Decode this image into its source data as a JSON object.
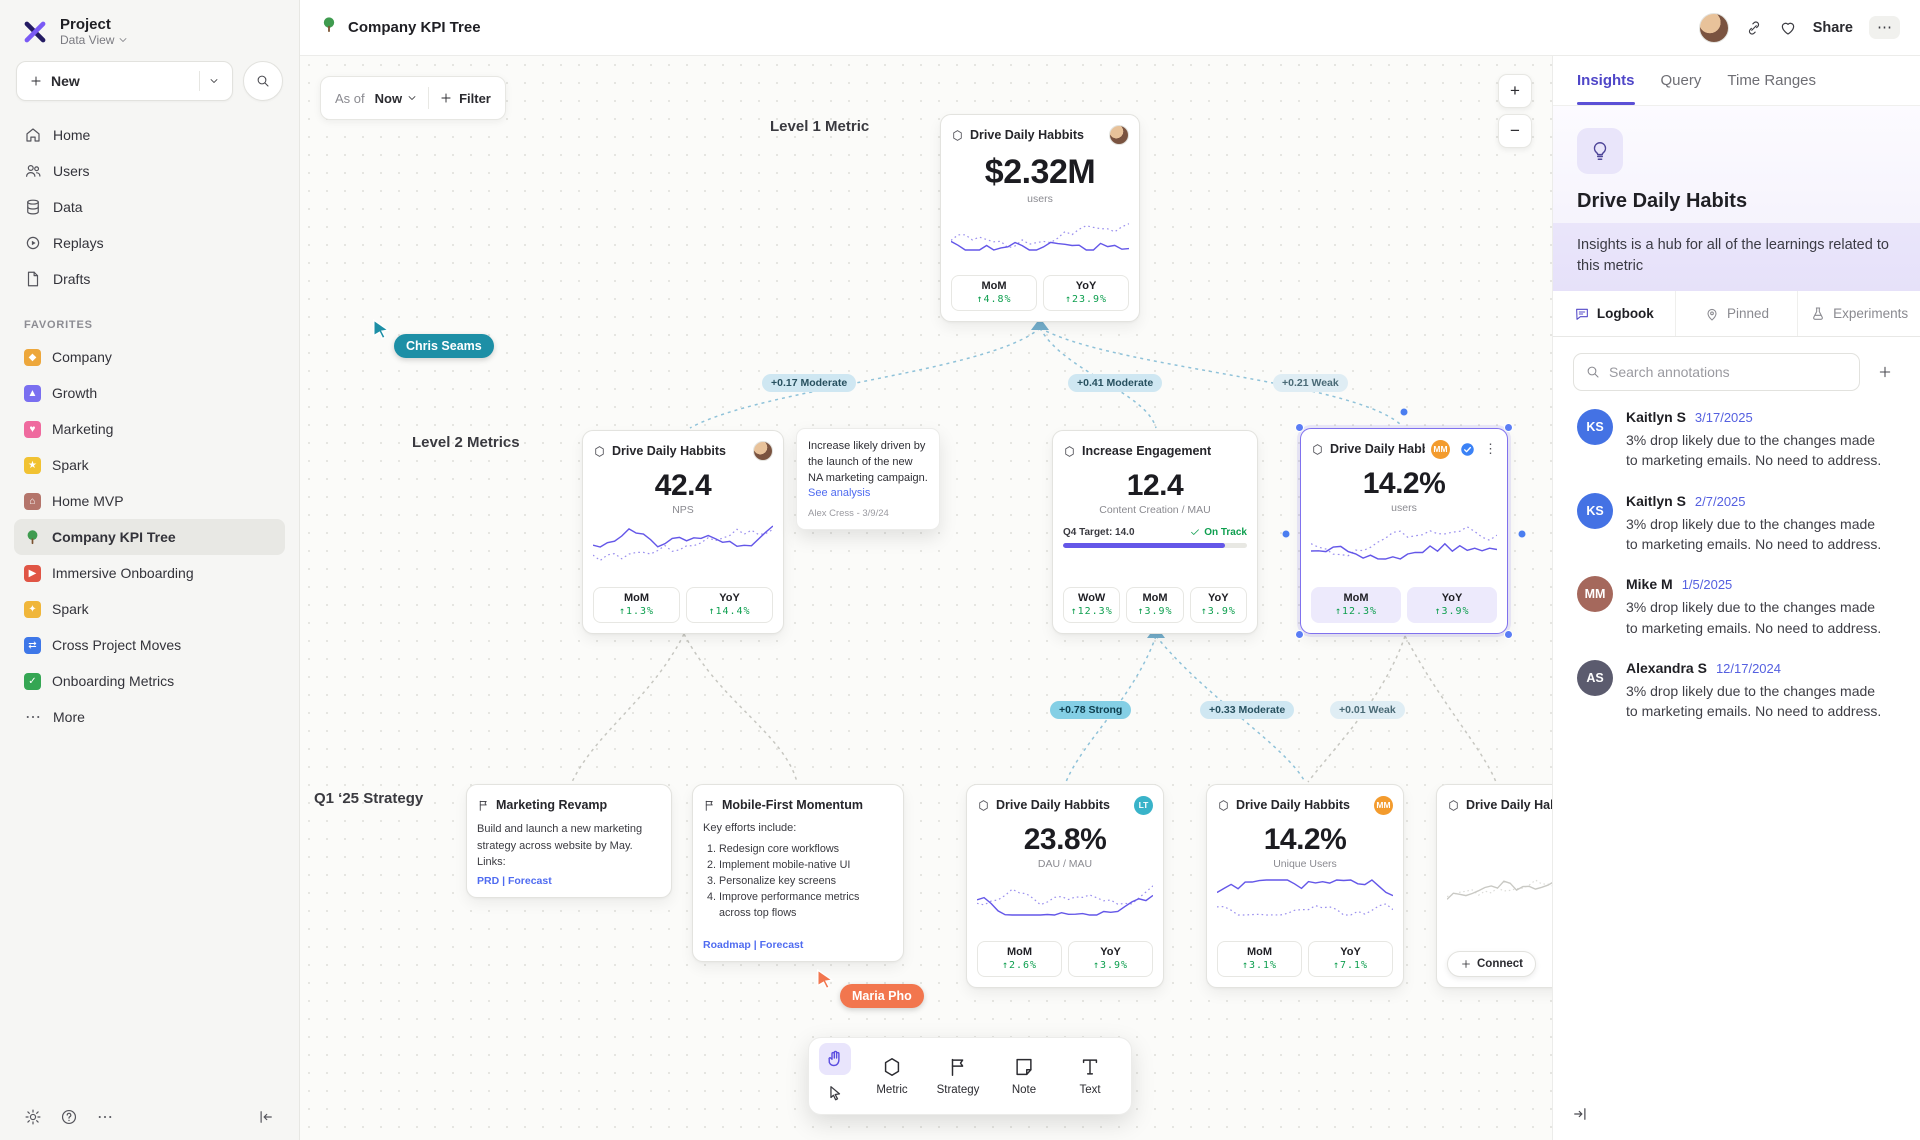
{
  "colors": {
    "accent_purple": "#6457e8",
    "positive_green": "#0e9f4f",
    "cursor_teal": "#1d8fa6",
    "cursor_orange": "#f2764e",
    "edge_blue": "#8fc2d9",
    "date_blue": "#5560e0",
    "badge_orange": "#f39b2d",
    "badge_teal": "#39b3c9",
    "selection_purple": "#8071ee"
  },
  "sidebar": {
    "project_title": "Project",
    "project_subtitle": "Data View",
    "new_button_label": "New",
    "nav": [
      {
        "label": "Home"
      },
      {
        "label": "Users"
      },
      {
        "label": "Data"
      },
      {
        "label": "Replays"
      },
      {
        "label": "Drafts"
      }
    ],
    "favorites_title": "FAVORITES",
    "favorites": [
      {
        "label": "Company"
      },
      {
        "label": "Growth"
      },
      {
        "label": "Marketing"
      },
      {
        "label": "Spark"
      },
      {
        "label": "Home MVP"
      },
      {
        "label": "Company KPI Tree"
      },
      {
        "label": "Immersive Onboarding"
      },
      {
        "label": "Spark"
      },
      {
        "label": "Cross Project Moves"
      },
      {
        "label": "Onboarding Metrics"
      }
    ],
    "more_label": "More"
  },
  "topbar": {
    "board_title": "Company KPI Tree",
    "share_label": "Share"
  },
  "canvas": {
    "as_of_label": "As of",
    "as_of_value": "Now",
    "filter_label": "Filter",
    "zoom_in": "+",
    "zoom_out": "−",
    "level1_label": "Level 1 Metric",
    "level2_label": "Level 2 Metrics",
    "strategy_label": "Q1 ‘25 Strategy",
    "cursors": [
      {
        "name": "Chris Seams"
      },
      {
        "name": "Maria Pho"
      }
    ],
    "edges": [
      {
        "label": "+0.17 Moderate",
        "strength": "moderate"
      },
      {
        "label": "+0.41 Moderate",
        "strength": "moderate"
      },
      {
        "label": "+0.21 Weak",
        "strength": "weak"
      },
      {
        "label": "+0.78 Strong",
        "strength": "strong"
      },
      {
        "label": "+0.33 Moderate",
        "strength": "moderate"
      },
      {
        "label": "+0.01 Weak",
        "strength": "weak"
      }
    ],
    "cards": {
      "root": {
        "title": "Drive Daily Habbits",
        "value": "$2.32M",
        "unit": "users",
        "chips": [
          {
            "label": "MoM",
            "value": "↑4.8%"
          },
          {
            "label": "YoY",
            "value": "↑23.9%"
          }
        ]
      },
      "nps": {
        "title": "Drive Daily Habbits",
        "value": "42.4",
        "unit": "NPS",
        "chips": [
          {
            "label": "MoM",
            "value": "↑1.3%"
          },
          {
            "label": "YoY",
            "value": "↑14.4%"
          }
        ]
      },
      "engagement": {
        "title": "Increase Engagement",
        "value": "12.4",
        "unit": "Content Creation / MAU",
        "target_label": "Q4 Target: 14.0",
        "status": "On Track",
        "chips": [
          {
            "label": "WoW",
            "value": "↑12.3%"
          },
          {
            "label": "MoM",
            "value": "↑3.9%"
          },
          {
            "label": "YoY",
            "value": "↑3.9%"
          }
        ]
      },
      "selected": {
        "title": "Drive Daily Habb..",
        "badge": "MM",
        "value": "14.2%",
        "unit": "users",
        "chips": [
          {
            "label": "MoM",
            "value": "↑12.3%"
          },
          {
            "label": "YoY",
            "value": "↑3.9%"
          }
        ]
      },
      "dau": {
        "title": "Drive Daily Habbits",
        "badge": "LT",
        "value": "23.8%",
        "unit": "DAU / MAU",
        "chips": [
          {
            "label": "MoM",
            "value": "↑2.6%"
          },
          {
            "label": "YoY",
            "value": "↑3.9%"
          }
        ]
      },
      "unique": {
        "title": "Drive Daily Habbits",
        "badge": "MM",
        "value": "14.2%",
        "unit": "Unique Users",
        "chips": [
          {
            "label": "MoM",
            "value": "↑3.1%"
          },
          {
            "label": "YoY",
            "value": "↑7.1%"
          }
        ]
      },
      "partial": {
        "title": "Drive Daily Hab...",
        "connect_label": "Connect"
      }
    },
    "note": {
      "text": "Increase likely driven by the launch of the new NA marketing campaign.",
      "link": "See analysis",
      "author": "Alex Cress - 3/9/24"
    },
    "strategies": {
      "marketing": {
        "title": "Marketing Revamp",
        "body": "Build and launch a new marketing strategy across website by May. Links:",
        "links": "PRD | Forecast"
      },
      "mobile": {
        "title": "Mobile-First Momentum",
        "intro": "Key efforts include:",
        "items": [
          "Redesign core workflows",
          "Implement mobile-native UI",
          "Personalize key screens",
          "Improve performance metrics across top flows"
        ],
        "links": "Roadmap | Forecast"
      }
    },
    "toolbar": {
      "tools": [
        {
          "label": "Metric"
        },
        {
          "label": "Strategy"
        },
        {
          "label": "Note"
        },
        {
          "label": "Text"
        }
      ]
    }
  },
  "panel": {
    "tabs": [
      "Insights",
      "Query",
      "Time Ranges"
    ],
    "title": "Drive Daily Habits",
    "description": "Insights is a hub for all of the learnings related to this metric",
    "subtabs": [
      "Logbook",
      "Pinned",
      "Experiments"
    ],
    "search_placeholder": "Search annotations",
    "annotations": [
      {
        "initials": "KS",
        "name": "Kaitlyn S",
        "date": "3/17/2025",
        "text": "3% drop likely due to the changes made to marketing emails. No need to address."
      },
      {
        "initials": "KS",
        "name": "Kaitlyn S",
        "date": "2/7/2025",
        "text": "3% drop likely due to the changes made to marketing emails. No need to address."
      },
      {
        "initials": "MM",
        "name": "Mike M",
        "date": "1/5/2025",
        "text": "3% drop likely due to the changes made to marketing emails. No need to address."
      },
      {
        "initials": "AS",
        "name": "Alexandra S",
        "date": "12/17/2024",
        "text": "3% drop likely due to the changes made to marketing emails. No need to address."
      }
    ]
  }
}
